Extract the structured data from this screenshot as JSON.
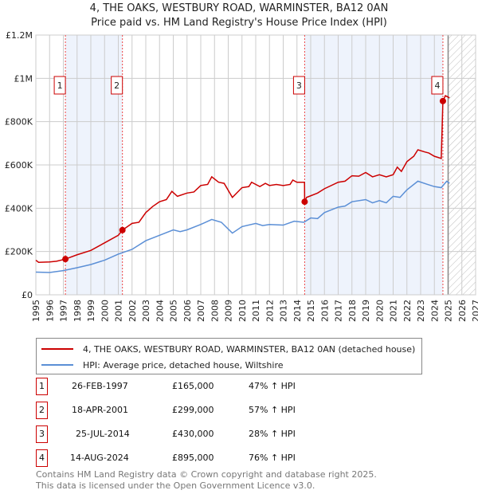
{
  "title_line1": "4, THE OAKS, WESTBURY ROAD, WARMINSTER, BA12 0AN",
  "title_line2": "Price paid vs. HM Land Registry's House Price Index (HPI)",
  "chart_data": {
    "type": "line",
    "xlim": [
      1995,
      2027
    ],
    "ylim": [
      0,
      1200000
    ],
    "x_ticks": [
      "1995",
      "1996",
      "1997",
      "1998",
      "1999",
      "2000",
      "2001",
      "2002",
      "2003",
      "2004",
      "2005",
      "2006",
      "2007",
      "2008",
      "2009",
      "2010",
      "2011",
      "2012",
      "2013",
      "2014",
      "2015",
      "2016",
      "2017",
      "2018",
      "2019",
      "2020",
      "2021",
      "2022",
      "2023",
      "2024",
      "2025",
      "2026",
      "2027"
    ],
    "y_ticks": [
      {
        "v": 0,
        "label": "£0"
      },
      {
        "v": 200000,
        "label": "£200K"
      },
      {
        "v": 400000,
        "label": "£400K"
      },
      {
        "v": 600000,
        "label": "£600K"
      },
      {
        "v": 800000,
        "label": "£800K"
      },
      {
        "v": 1000000,
        "label": "£1M"
      },
      {
        "v": 1200000,
        "label": "£1.2M"
      }
    ],
    "shaded_ranges": [
      [
        1997.15,
        2001.3
      ],
      [
        2014.56,
        2024.62
      ]
    ],
    "forecast_from": 2025.0,
    "series": [
      {
        "name": "4, THE OAKS, WESTBURY ROAD, WARMINSTER, BA12 0AN (detached house)",
        "color": "#cc0000",
        "points": [
          [
            1995,
            160
          ],
          [
            1995.2,
            150
          ],
          [
            1996,
            152
          ],
          [
            1996.5,
            155
          ],
          [
            1997.15,
            165
          ],
          [
            1998,
            185
          ],
          [
            1999,
            205
          ],
          [
            2000,
            240
          ],
          [
            2001,
            275
          ],
          [
            2001.3,
            299
          ],
          [
            2002,
            330
          ],
          [
            2002.5,
            335
          ],
          [
            2003,
            380
          ],
          [
            2003.5,
            408
          ],
          [
            2004,
            430
          ],
          [
            2004.5,
            440
          ],
          [
            2004.9,
            478
          ],
          [
            2005.3,
            455
          ],
          [
            2006,
            470
          ],
          [
            2006.5,
            475
          ],
          [
            2007,
            505
          ],
          [
            2007.5,
            510
          ],
          [
            2007.8,
            545
          ],
          [
            2008.3,
            520
          ],
          [
            2008.7,
            515
          ],
          [
            2009.3,
            450
          ],
          [
            2010,
            495
          ],
          [
            2010.5,
            500
          ],
          [
            2010.7,
            520
          ],
          [
            2011.3,
            500
          ],
          [
            2011.7,
            515
          ],
          [
            2012,
            505
          ],
          [
            2012.5,
            510
          ],
          [
            2013,
            505
          ],
          [
            2013.5,
            510
          ],
          [
            2013.7,
            530
          ],
          [
            2014,
            520
          ],
          [
            2014.55,
            520
          ],
          [
            2014.56,
            430
          ],
          [
            2014.7,
            450
          ],
          [
            2015.5,
            470
          ],
          [
            2016,
            490
          ],
          [
            2017,
            520
          ],
          [
            2017.5,
            525
          ],
          [
            2018,
            550
          ],
          [
            2018.5,
            548
          ],
          [
            2019,
            565
          ],
          [
            2019.5,
            545
          ],
          [
            2020,
            555
          ],
          [
            2020.5,
            545
          ],
          [
            2021,
            555
          ],
          [
            2021.3,
            590
          ],
          [
            2021.6,
            570
          ],
          [
            2022,
            615
          ],
          [
            2022.5,
            640
          ],
          [
            2022.8,
            670
          ],
          [
            2023.3,
            660
          ],
          [
            2023.6,
            655
          ],
          [
            2024,
            640
          ],
          [
            2024.5,
            630
          ],
          [
            2024.62,
            895
          ],
          [
            2024.8,
            920
          ],
          [
            2025.1,
            910
          ]
        ]
      },
      {
        "name": "HPI: Average price, detached house, Wiltshire",
        "color": "#5b8fd6",
        "points": [
          [
            1995,
            105
          ],
          [
            1996,
            103
          ],
          [
            1997,
            112
          ],
          [
            1998,
            125
          ],
          [
            1999,
            140
          ],
          [
            2000,
            160
          ],
          [
            2001,
            188
          ],
          [
            2002,
            210
          ],
          [
            2003,
            250
          ],
          [
            2004,
            275
          ],
          [
            2005,
            300
          ],
          [
            2005.5,
            292
          ],
          [
            2006,
            300
          ],
          [
            2007,
            325
          ],
          [
            2007.8,
            348
          ],
          [
            2008.5,
            335
          ],
          [
            2009.3,
            285
          ],
          [
            2010,
            315
          ],
          [
            2011,
            330
          ],
          [
            2011.5,
            320
          ],
          [
            2012,
            325
          ],
          [
            2013,
            322
          ],
          [
            2013.8,
            340
          ],
          [
            2014.5,
            335
          ],
          [
            2015,
            355
          ],
          [
            2015.5,
            352
          ],
          [
            2016,
            380
          ],
          [
            2017,
            405
          ],
          [
            2017.5,
            410
          ],
          [
            2018,
            430
          ],
          [
            2019,
            440
          ],
          [
            2019.5,
            425
          ],
          [
            2020,
            435
          ],
          [
            2020.5,
            425
          ],
          [
            2021,
            455
          ],
          [
            2021.5,
            450
          ],
          [
            2022,
            485
          ],
          [
            2022.8,
            525
          ],
          [
            2023.5,
            510
          ],
          [
            2024,
            500
          ],
          [
            2024.5,
            495
          ],
          [
            2024.9,
            525
          ],
          [
            2025.1,
            515
          ]
        ]
      }
    ],
    "y_units_note": "points y in £K",
    "sales": [
      {
        "n": "1",
        "x": 1997.15,
        "price": 165000
      },
      {
        "n": "2",
        "x": 2001.3,
        "price": 299000
      },
      {
        "n": "3",
        "x": 2014.56,
        "price": 430000
      },
      {
        "n": "4",
        "x": 2024.62,
        "price": 895000
      }
    ]
  },
  "legend": {
    "red": "4, THE OAKS, WESTBURY ROAD, WARMINSTER, BA12 0AN (detached house)",
    "blue": "HPI: Average price, detached house, Wiltshire"
  },
  "table": [
    {
      "n": "1",
      "date": "26-FEB-1997",
      "price": "£165,000",
      "hpi": "47% ↑ HPI"
    },
    {
      "n": "2",
      "date": "18-APR-2001",
      "price": "£299,000",
      "hpi": "57% ↑ HPI"
    },
    {
      "n": "3",
      "date": "25-JUL-2014",
      "price": "£430,000",
      "hpi": "28% ↑ HPI"
    },
    {
      "n": "4",
      "date": "14-AUG-2024",
      "price": "£895,000",
      "hpi": "76% ↑ HPI"
    }
  ],
  "footer": {
    "line1": "Contains HM Land Registry data © Crown copyright and database right 2025.",
    "line2": "This data is licensed under the Open Government Licence v3.0."
  }
}
